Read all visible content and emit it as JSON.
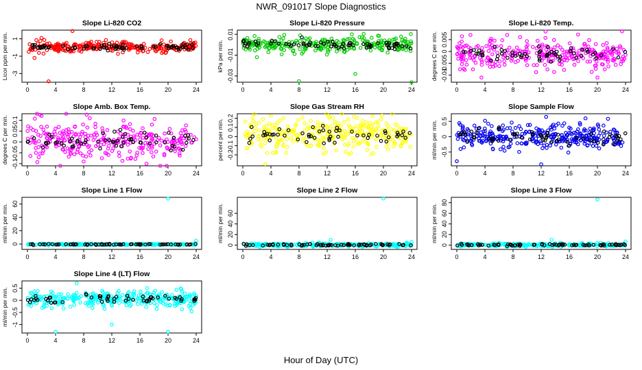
{
  "title": "NWR_091017  Slope Diagnostics",
  "xlabel": "Hour of Day (UTC)",
  "chart_data": [
    {
      "type": "scatter",
      "title": "Slope Li-820 CO2",
      "ylabel": "Licor ppm per min.",
      "color": "#ff0000",
      "xlim": [
        0,
        24
      ],
      "xticks": [
        0,
        4,
        8,
        12,
        16,
        20,
        24
      ],
      "ylim": [
        -4,
        2
      ],
      "yticks": [
        -3,
        -1,
        1
      ],
      "center": 0.05,
      "spread": 0.3,
      "nfg": 260,
      "nblk": 70,
      "outliers": [
        [
          2,
          1.1
        ],
        [
          6.4,
          1.9
        ],
        [
          3,
          -3.9
        ],
        [
          1,
          -1.2
        ],
        [
          20.4,
          0.7
        ]
      ]
    },
    {
      "type": "scatter",
      "title": "Slope Li-820 Pressure",
      "ylabel": "kPa per min.",
      "color": "#00cc00",
      "xlim": [
        0,
        24
      ],
      "xticks": [
        0,
        4,
        8,
        12,
        16,
        20,
        24
      ],
      "ylim": [
        -0.036,
        0.014
      ],
      "yticks": [
        -0.03,
        -0.01,
        0.01
      ],
      "center": 0,
      "spread": 0.0035,
      "nfg": 260,
      "nblk": 70,
      "outliers": [
        [
          8,
          -0.035
        ],
        [
          16,
          -0.028
        ],
        [
          24,
          -0.036
        ],
        [
          15.5,
          0.01
        ],
        [
          2,
          -0.012
        ]
      ]
    },
    {
      "type": "scatter",
      "title": "Slope Li-820 Temp.",
      "ylabel": "degrees C per min.",
      "color": "#ff00ff",
      "xlim": [
        0,
        24
      ],
      "xticks": [
        0,
        4,
        8,
        12,
        16,
        20,
        24
      ],
      "ylim": [
        -0.013,
        0.009
      ],
      "yticks": [
        -0.01,
        -0.005,
        0,
        0.005
      ],
      "center": -0.001,
      "spread": 0.003,
      "nfg": 300,
      "nblk": 60,
      "outliers": [
        [
          23.5,
          0.0085
        ],
        [
          3.5,
          -0.011
        ],
        [
          20,
          -0.011
        ]
      ]
    },
    {
      "type": "scatter",
      "title": "Slope Amb. Box Temp.",
      "ylabel": "degrees C per min.",
      "color": "#ff00ff",
      "xlim": [
        0,
        24
      ],
      "xticks": [
        0,
        4,
        8,
        12,
        16,
        20,
        24
      ],
      "ylim": [
        -0.11,
        0.13
      ],
      "yticks": [
        -0.1,
        -0.05,
        0,
        0.05,
        0.1
      ],
      "center": 0.005,
      "spread": 0.045,
      "nfg": 300,
      "nblk": 60,
      "outliers": [
        [
          2,
          0.12
        ],
        [
          19.8,
          -0.11
        ],
        [
          8,
          -0.09
        ]
      ]
    },
    {
      "type": "scatter",
      "title": "Slope Gas Stream RH",
      "ylabel": "percent per min.",
      "color": "#ffff00",
      "xlim": [
        0,
        24
      ],
      "xticks": [
        0,
        4,
        8,
        12,
        16,
        20,
        24
      ],
      "ylim": [
        -0.32,
        0.25
      ],
      "yticks": [
        -0.2,
        -0.1,
        0,
        0.1,
        0.2
      ],
      "center": 0.02,
      "spread": 0.09,
      "nfg": 320,
      "nblk": 55,
      "outliers": [
        [
          3.2,
          -0.3
        ],
        [
          12.2,
          0.22
        ]
      ]
    },
    {
      "type": "scatter",
      "title": "Slope Sample Flow",
      "ylabel": "ml/min per min.",
      "color": "#0000ee",
      "xlim": [
        0,
        24
      ],
      "xticks": [
        0,
        4,
        8,
        12,
        16,
        20,
        24
      ],
      "ylim": [
        -0.95,
        0.75
      ],
      "yticks": [
        -0.5,
        0,
        0.5
      ],
      "center": 0,
      "spread": 0.2,
      "nfg": 320,
      "nblk": 60,
      "outliers": [
        [
          12,
          -0.9
        ],
        [
          0,
          -0.8
        ],
        [
          18.3,
          0.6
        ]
      ]
    },
    {
      "type": "scatter",
      "title": "Slope Line 1 Flow",
      "ylabel": "ml/min per min.",
      "color": "#00ffff",
      "xlim": [
        0,
        24
      ],
      "xticks": [
        0,
        4,
        8,
        12,
        16,
        20,
        24
      ],
      "ylim": [
        -8,
        70
      ],
      "yticks": [
        0,
        20,
        40,
        60
      ],
      "center": -0.5,
      "spread": 0.6,
      "nfg": 240,
      "nblk": 70,
      "outliers": [
        [
          20,
          68
        ],
        [
          24,
          5
        ]
      ]
    },
    {
      "type": "scatter",
      "title": "Slope Line 2 Flow",
      "ylabel": "ml/min per min.",
      "color": "#00ffff",
      "xlim": [
        0,
        24
      ],
      "xticks": [
        0,
        4,
        8,
        12,
        16,
        20,
        24
      ],
      "ylim": [
        -8,
        90
      ],
      "yticks": [
        0,
        20,
        40,
        60
      ],
      "center": 0.5,
      "spread": 1.5,
      "nfg": 240,
      "nblk": 70,
      "outliers": [
        [
          20,
          88
        ],
        [
          12.5,
          10
        ],
        [
          24,
          6
        ]
      ]
    },
    {
      "type": "scatter",
      "title": "Slope Line 3 Flow",
      "ylabel": "ml/min per min.",
      "color": "#00ffff",
      "xlim": [
        0,
        24
      ],
      "xticks": [
        0,
        4,
        8,
        12,
        16,
        20,
        24
      ],
      "ylim": [
        -8,
        90
      ],
      "yticks": [
        0,
        20,
        40,
        60,
        80
      ],
      "center": 0.5,
      "spread": 1.5,
      "nfg": 240,
      "nblk": 70,
      "outliers": [
        [
          20,
          86
        ],
        [
          13.5,
          10
        ],
        [
          24,
          7
        ]
      ]
    },
    {
      "type": "scatter",
      "title": "Slope Line 4 (LT) Flow",
      "ylabel": "ml/min per min.",
      "color": "#00ffff",
      "xlim": [
        0,
        24
      ],
      "xticks": [
        0,
        4,
        8,
        12,
        16,
        20,
        24
      ],
      "ylim": [
        -1.35,
        0.8
      ],
      "yticks": [
        -1,
        -0.5,
        0,
        0.5
      ],
      "center": 0.05,
      "spread": 0.17,
      "nfg": 320,
      "nblk": 55,
      "outliers": [
        [
          4,
          -1.3
        ],
        [
          12,
          -1.0
        ],
        [
          20,
          -1.3
        ],
        [
          7,
          0.7
        ]
      ]
    }
  ]
}
